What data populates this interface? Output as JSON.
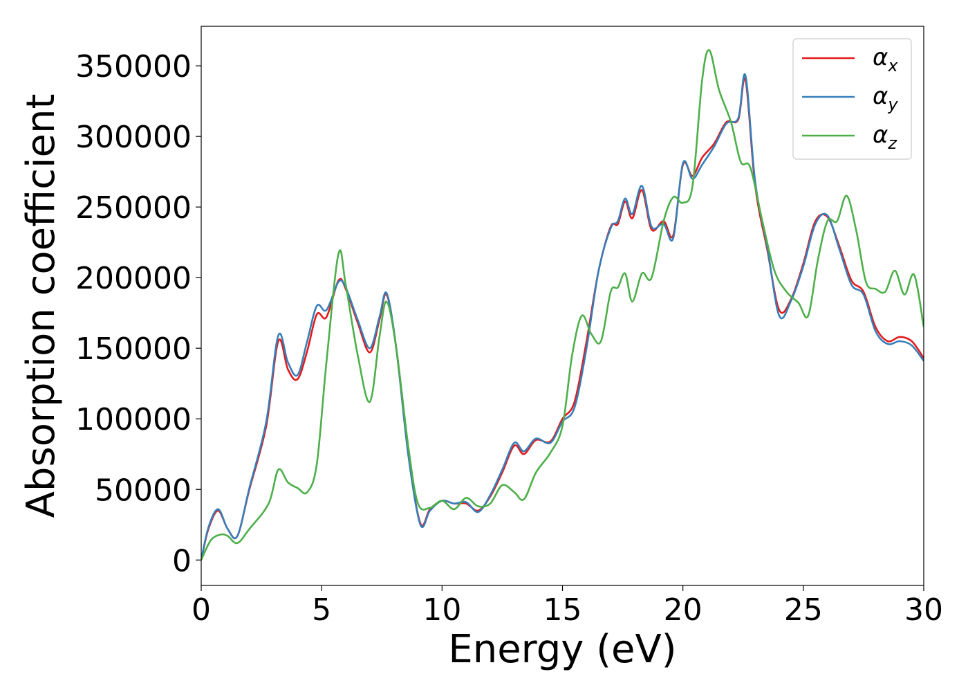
{
  "chart_data": {
    "type": "line",
    "title": "",
    "xlabel": "Energy (eV)",
    "ylabel": "Absorption coefficient",
    "xlim": [
      0,
      30
    ],
    "ylim": [
      -18000,
      378000
    ],
    "xticks": [
      0,
      5,
      10,
      15,
      20,
      25,
      30
    ],
    "yticks": [
      0,
      50000,
      100000,
      150000,
      200000,
      250000,
      300000,
      350000
    ],
    "grid": false,
    "legend": "top-right",
    "series": [
      {
        "name": "α_x",
        "label_main": "α",
        "label_sub": "x",
        "color": "#e41a1c",
        "x": [
          0,
          0.3,
          0.7,
          1.1,
          1.5,
          2.0,
          2.7,
          3.2,
          3.6,
          4.0,
          4.4,
          4.8,
          5.2,
          5.7,
          6.0,
          6.5,
          7.0,
          7.4,
          7.7,
          8.1,
          8.6,
          9.1,
          9.5,
          10.0,
          10.5,
          11.0,
          11.5,
          12.0,
          12.5,
          13.0,
          13.4,
          13.9,
          14.5,
          15.0,
          15.5,
          16.0,
          16.5,
          17.0,
          17.3,
          17.6,
          17.9,
          18.3,
          18.7,
          19.2,
          19.6,
          20.0,
          20.4,
          20.8,
          21.3,
          21.8,
          22.3,
          22.6,
          23.0,
          23.5,
          24.0,
          24.5,
          25.0,
          25.5,
          26.0,
          26.5,
          27.0,
          27.5,
          28.0,
          28.5,
          29.0,
          29.5,
          30.0
        ],
        "y": [
          0,
          22000,
          35000,
          22000,
          17000,
          50000,
          95000,
          155000,
          135000,
          128000,
          148000,
          174000,
          172000,
          198000,
          192000,
          168000,
          147000,
          170000,
          188000,
          150000,
          75000,
          26000,
          36000,
          42000,
          40000,
          40000,
          35000,
          45000,
          62000,
          81000,
          75000,
          85000,
          84000,
          100000,
          112000,
          155000,
          205000,
          236000,
          238000,
          254000,
          242000,
          262000,
          234000,
          240000,
          230000,
          280000,
          272000,
          285000,
          295000,
          310000,
          312000,
          340000,
          265000,
          220000,
          177000,
          185000,
          210000,
          240000,
          243000,
          222000,
          198000,
          190000,
          165000,
          155000,
          158000,
          155000,
          143000
        ]
      },
      {
        "name": "α_y",
        "label_main": "α",
        "label_sub": "y",
        "color": "#377eb8",
        "x": [
          0,
          0.3,
          0.7,
          1.1,
          1.5,
          2.0,
          2.7,
          3.2,
          3.6,
          4.0,
          4.4,
          4.8,
          5.2,
          5.7,
          6.0,
          6.5,
          7.0,
          7.4,
          7.7,
          8.1,
          8.6,
          9.1,
          9.5,
          10.0,
          10.5,
          11.0,
          11.5,
          12.0,
          12.5,
          13.0,
          13.4,
          13.9,
          14.5,
          15.0,
          15.5,
          16.0,
          16.5,
          17.0,
          17.3,
          17.6,
          17.9,
          18.3,
          18.7,
          19.2,
          19.6,
          20.0,
          20.4,
          20.8,
          21.3,
          21.8,
          22.3,
          22.6,
          23.0,
          23.5,
          24.0,
          24.5,
          25.0,
          25.5,
          26.0,
          26.5,
          27.0,
          27.5,
          28.0,
          28.5,
          29.0,
          29.5,
          30.0
        ],
        "y": [
          0,
          23000,
          36000,
          22000,
          17000,
          51000,
          98000,
          159000,
          140000,
          131000,
          155000,
          180000,
          177000,
          197000,
          193000,
          170000,
          150000,
          172000,
          189000,
          150000,
          74000,
          25000,
          35000,
          42000,
          40000,
          41000,
          34000,
          46000,
          64000,
          83000,
          77000,
          86000,
          83000,
          98000,
          108000,
          150000,
          205000,
          235000,
          240000,
          256000,
          245000,
          265000,
          236000,
          238000,
          228000,
          281000,
          270000,
          280000,
          293000,
          309000,
          313000,
          343000,
          268000,
          222000,
          173000,
          184000,
          208000,
          238000,
          244000,
          220000,
          195000,
          188000,
          162000,
          153000,
          155000,
          152000,
          141000
        ]
      },
      {
        "name": "α_z",
        "label_main": "α",
        "label_sub": "z",
        "color": "#4daf4a",
        "x": [
          0,
          0.4,
          0.8,
          1.1,
          1.5,
          2.0,
          2.8,
          3.2,
          3.6,
          4.0,
          4.4,
          4.8,
          5.2,
          5.7,
          6.0,
          6.5,
          7.0,
          7.4,
          7.7,
          8.1,
          8.6,
          9.0,
          9.5,
          10.0,
          10.5,
          11.0,
          11.5,
          12.0,
          12.5,
          13.0,
          13.4,
          13.9,
          14.5,
          15.0,
          15.4,
          15.8,
          16.2,
          16.6,
          17.0,
          17.3,
          17.6,
          17.9,
          18.3,
          18.7,
          19.2,
          19.6,
          20.0,
          20.4,
          20.8,
          21.1,
          21.5,
          22.0,
          22.4,
          22.8,
          23.3,
          23.8,
          24.3,
          24.8,
          25.2,
          25.6,
          26.0,
          26.4,
          26.8,
          27.2,
          27.6,
          28.0,
          28.4,
          28.8,
          29.2,
          29.6,
          30.0
        ],
        "y": [
          0,
          14000,
          18000,
          17000,
          12000,
          22000,
          40000,
          64000,
          55000,
          51000,
          48000,
          68000,
          140000,
          217000,
          195000,
          145000,
          112000,
          158000,
          183000,
          150000,
          80000,
          40000,
          37000,
          42000,
          36000,
          44000,
          38000,
          40000,
          53000,
          48000,
          43000,
          62000,
          76000,
          95000,
          145000,
          173000,
          160000,
          155000,
          190000,
          193000,
          203000,
          183000,
          203000,
          200000,
          240000,
          257000,
          253000,
          265000,
          340000,
          361000,
          333000,
          310000,
          282000,
          278000,
          240000,
          205000,
          190000,
          182000,
          173000,
          212000,
          240000,
          240000,
          258000,
          233000,
          197000,
          192000,
          190000,
          205000,
          188000,
          202000,
          165000
        ]
      }
    ]
  }
}
